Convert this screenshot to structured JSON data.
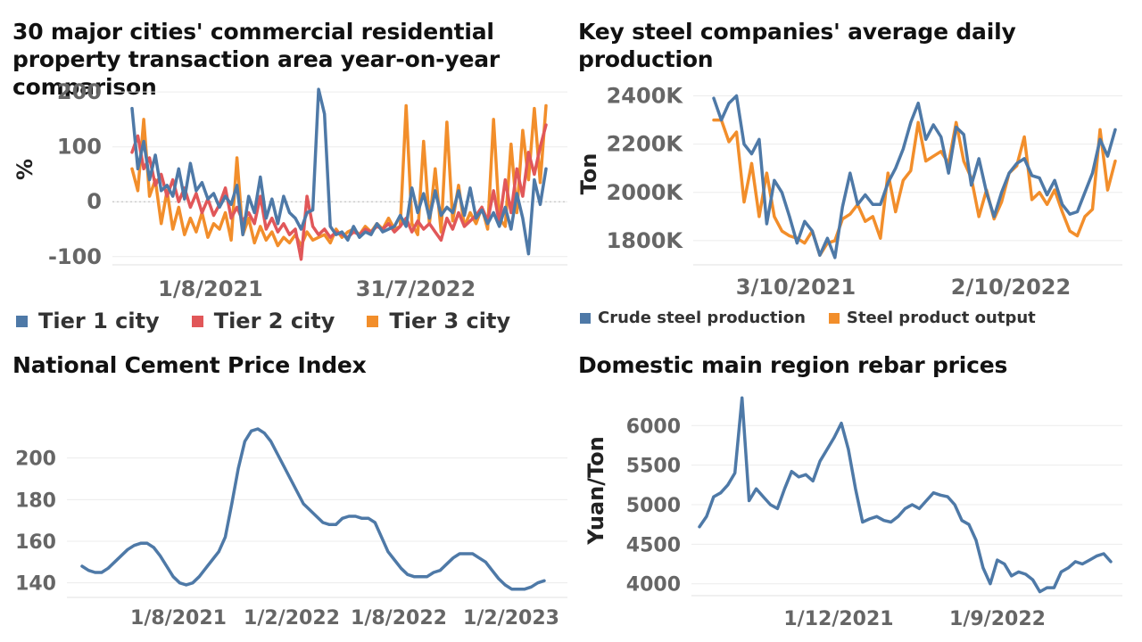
{
  "chart_data": [
    {
      "type": "line",
      "title": "30 major cities' commercial residential property transaction area year-on-year comparison",
      "ylabel": "%",
      "ylim": [
        -115,
        210
      ],
      "yticks": [
        200,
        100,
        0,
        -100
      ],
      "xticks": [
        "1/8/2021",
        "31/7/2022"
      ],
      "legend_position": "bottom",
      "grid": true,
      "colors": {
        "Tier 1 city": "#4e79a7",
        "Tier 2 city": "#e15759",
        "Tier 3 city": "#f28e2b"
      },
      "series": [
        {
          "name": "Tier 1 city",
          "color": "#4e79a7",
          "values": [
            170,
            60,
            110,
            40,
            85,
            20,
            30,
            10,
            60,
            5,
            70,
            20,
            35,
            5,
            15,
            -10,
            10,
            -5,
            30,
            -60,
            10,
            -20,
            45,
            -30,
            5,
            -40,
            10,
            -20,
            -30,
            -50,
            -20,
            -15,
            205,
            160,
            -45,
            -60,
            -55,
            -70,
            -45,
            -65,
            -55,
            -60,
            -40,
            -55,
            -50,
            -45,
            -25,
            -45,
            25,
            -20,
            15,
            -30,
            20,
            -25,
            -10,
            -20,
            20,
            -25,
            25,
            -30,
            -15,
            -40,
            -20,
            -45,
            -10,
            -50,
            15,
            -30,
            -95,
            40,
            -5,
            60
          ]
        },
        {
          "name": "Tier 2 city",
          "color": "#e15759",
          "values": [
            90,
            120,
            60,
            80,
            30,
            50,
            10,
            40,
            0,
            25,
            -10,
            15,
            -20,
            5,
            -25,
            -5,
            25,
            -30,
            -10,
            -35,
            -20,
            -40,
            10,
            -50,
            -30,
            -55,
            -40,
            -60,
            -50,
            -105,
            10,
            -45,
            -60,
            -50,
            -65,
            -55,
            -60,
            -65,
            -55,
            -60,
            -50,
            -55,
            -45,
            -50,
            -40,
            -55,
            -45,
            -30,
            -55,
            -35,
            -50,
            -40,
            -55,
            -70,
            -30,
            -50,
            -20,
            -45,
            -35,
            -25,
            -10,
            -35,
            20,
            -40,
            40,
            -20,
            60,
            10,
            90,
            50,
            100,
            140
          ]
        },
        {
          "name": "Tier 3 city",
          "color": "#f28e2b",
          "values": [
            60,
            20,
            150,
            10,
            40,
            -40,
            20,
            -50,
            -10,
            -60,
            -30,
            -55,
            -20,
            -65,
            -40,
            -50,
            -20,
            -70,
            80,
            -60,
            -30,
            -75,
            -45,
            -70,
            -55,
            -80,
            -65,
            -75,
            -60,
            -80,
            -55,
            -70,
            -65,
            -60,
            -75,
            -50,
            -65,
            -55,
            -50,
            -60,
            -45,
            -55,
            -40,
            -50,
            -30,
            -50,
            -45,
            175,
            -40,
            -60,
            110,
            -40,
            60,
            -55,
            145,
            -35,
            30,
            -45,
            -20,
            -40,
            -10,
            -50,
            150,
            -30,
            -45,
            105,
            -20,
            130,
            40,
            170,
            35,
            175
          ]
        }
      ]
    },
    {
      "type": "line",
      "title": "Key steel companies' average daily production",
      "ylabel": "Ton",
      "ylim": [
        1700000,
        2450000
      ],
      "yticks": [
        "2400K",
        "2200K",
        "2000K",
        "1800K"
      ],
      "ytick_values": [
        2400000,
        2200000,
        2000000,
        1800000
      ],
      "xticks": [
        "3/10/2021",
        "2/10/2022"
      ],
      "legend_position": "bottom",
      "grid": true,
      "series": [
        {
          "name": "Crude steel production",
          "color": "#4e79a7",
          "values": [
            2390000,
            2300000,
            2370000,
            2400000,
            2200000,
            2160000,
            2220000,
            1870000,
            2050000,
            2000000,
            1900000,
            1790000,
            1880000,
            1840000,
            1740000,
            1810000,
            1730000,
            1940000,
            2080000,
            1950000,
            1990000,
            1950000,
            1950000,
            2040000,
            2100000,
            2180000,
            2290000,
            2370000,
            2220000,
            2280000,
            2230000,
            2080000,
            2270000,
            2240000,
            2030000,
            2140000,
            2000000,
            1900000,
            2000000,
            2080000,
            2120000,
            2140000,
            2070000,
            2060000,
            1990000,
            2050000,
            1950000,
            1910000,
            1920000,
            2000000,
            2080000,
            2220000,
            2150000,
            2260000
          ]
        },
        {
          "name": "Steel product output",
          "color": "#f28e2b",
          "values": [
            2300000,
            2300000,
            2210000,
            2250000,
            1960000,
            2120000,
            1900000,
            2080000,
            1900000,
            1840000,
            1820000,
            1810000,
            1790000,
            1840000,
            1740000,
            1790000,
            1800000,
            1890000,
            1910000,
            1950000,
            1880000,
            1900000,
            1810000,
            2080000,
            1920000,
            2050000,
            2090000,
            2290000,
            2130000,
            2150000,
            2170000,
            2120000,
            2290000,
            2130000,
            2060000,
            1900000,
            2010000,
            1890000,
            1960000,
            2080000,
            2110000,
            2230000,
            1970000,
            2000000,
            1950000,
            2010000,
            1920000,
            1840000,
            1820000,
            1900000,
            1930000,
            2260000,
            2010000,
            2130000
          ]
        }
      ]
    },
    {
      "type": "line",
      "title": "National Cement Price Index",
      "ylabel": "",
      "ylim": [
        133,
        223
      ],
      "yticks": [
        200,
        180,
        160,
        140
      ],
      "xticks": [
        "1/8/2021",
        "1/2/2022",
        "1/8/2022",
        "1/2/2023"
      ],
      "grid": true,
      "series": [
        {
          "name": "",
          "color": "#4e79a7",
          "values": [
            148,
            146,
            145,
            145,
            147,
            150,
            153,
            156,
            158,
            159,
            159,
            157,
            153,
            148,
            143,
            140,
            139,
            140,
            143,
            147,
            151,
            155,
            162,
            178,
            195,
            208,
            213,
            214,
            212,
            208,
            202,
            196,
            190,
            184,
            178,
            175,
            172,
            169,
            168,
            168,
            171,
            172,
            172,
            171,
            171,
            169,
            162,
            155,
            151,
            147,
            144,
            143,
            143,
            143,
            145,
            146,
            149,
            152,
            154,
            154,
            154,
            152,
            150,
            146,
            142,
            139,
            137,
            137,
            137,
            138,
            140,
            141
          ]
        }
      ]
    },
    {
      "type": "line",
      "title": "Domestic main region rebar prices",
      "ylabel": "Yuan/Ton",
      "ylim": [
        3850,
        6420
      ],
      "yticks": [
        6000,
        5500,
        5000,
        4500,
        4000
      ],
      "xticks": [
        "1/12/2021",
        "1/9/2022"
      ],
      "grid": true,
      "series": [
        {
          "name": "",
          "color": "#4e79a7",
          "values": [
            4720,
            4850,
            5100,
            5150,
            5250,
            5400,
            6350,
            5050,
            5200,
            5100,
            5000,
            4950,
            5200,
            5420,
            5350,
            5380,
            5300,
            5550,
            5700,
            5850,
            6030,
            5700,
            5200,
            4780,
            4820,
            4850,
            4800,
            4780,
            4850,
            4950,
            5000,
            4950,
            5050,
            5150,
            5120,
            5100,
            5000,
            4800,
            4750,
            4550,
            4200,
            4000,
            4300,
            4250,
            4100,
            4150,
            4120,
            4050,
            3900,
            3950,
            3950,
            4150,
            4200,
            4280,
            4250,
            4300,
            4350,
            4380,
            4280
          ]
        }
      ]
    }
  ]
}
